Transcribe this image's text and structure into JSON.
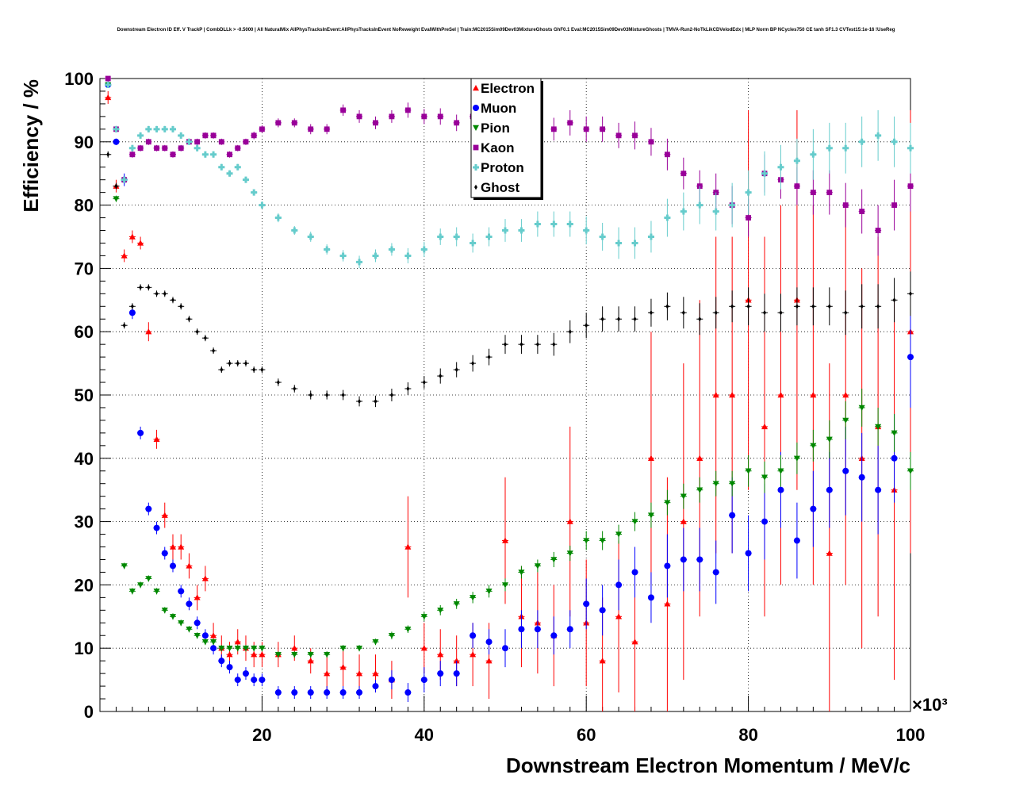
{
  "chart_data": {
    "type": "scatter",
    "title": "Downstream Electron ID Eff. V TrackP | CombDLLk > -0.5000 | All NaturalMix AllPhysTracksInEvent:AllPhysTracksInEvent NoReweight EvalWithPreSel | Train:MC2015Sim09Dev03MixtureGhosts GhF0.1 Eval:MC2015Sim09Dev03MixtureGhosts | TMVA-Run2-NoTkLikCDVelodEdx | MLP Norm BP NCycles750 CE tanh SF1.3 CVTest15:1e-16 !UseReg",
    "xlabel": "Downstream Electron Momentum / MeV/c",
    "ylabel": "Efficiency / %",
    "x_multiplier_label": "×10³",
    "xlim": [
      0,
      100
    ],
    "ylim": [
      0,
      100
    ],
    "x_ticks": [
      20,
      40,
      60,
      80,
      100
    ],
    "y_ticks": [
      0,
      10,
      20,
      30,
      40,
      50,
      60,
      70,
      80,
      90,
      100
    ],
    "grid": true,
    "legend_position": "top-center",
    "series": [
      {
        "name": "Electron",
        "color": "#ff0000",
        "marker": "triangle-up",
        "x": [
          1,
          2,
          3,
          4,
          5,
          6,
          7,
          8,
          9,
          10,
          11,
          12,
          13,
          14,
          15,
          16,
          17,
          18,
          19,
          20,
          22,
          24,
          26,
          28,
          30,
          32,
          34,
          36,
          38,
          40,
          42,
          44,
          46,
          48,
          50,
          52,
          54,
          56,
          58,
          60,
          62,
          64,
          66,
          68,
          70,
          72,
          74,
          76,
          78,
          80,
          82,
          84,
          86,
          88,
          90,
          92,
          94,
          96,
          98,
          100
        ],
        "y": [
          97,
          83,
          72,
          75,
          74,
          60,
          43,
          31,
          26,
          26,
          23,
          18,
          21,
          12,
          10,
          9,
          11,
          10,
          9,
          9,
          9,
          10,
          8,
          6,
          7,
          6,
          6,
          5,
          26,
          10,
          9,
          8,
          9,
          8,
          27,
          15,
          14,
          12,
          30,
          14,
          8,
          15,
          11,
          40,
          17,
          30,
          40,
          50,
          50,
          65,
          45,
          50,
          65,
          50,
          25,
          50,
          40,
          45,
          35,
          60
        ],
        "err": [
          1,
          1,
          1,
          1,
          1,
          1.5,
          1.5,
          2,
          2,
          2,
          2,
          2,
          2,
          2,
          2,
          2,
          2,
          2,
          2,
          2,
          2,
          2,
          2,
          3,
          3,
          3,
          3,
          3,
          8,
          4,
          4,
          4,
          5,
          6,
          10,
          8,
          8,
          8,
          15,
          10,
          10,
          12,
          12,
          20,
          20,
          25,
          25,
          25,
          25,
          30,
          30,
          30,
          30,
          30,
          30,
          30,
          30,
          30,
          30,
          35
        ]
      },
      {
        "name": "Muon",
        "color": "#0000ff",
        "marker": "circle",
        "x": [
          1,
          2,
          3,
          4,
          5,
          6,
          7,
          8,
          9,
          10,
          11,
          12,
          13,
          14,
          15,
          16,
          17,
          18,
          19,
          20,
          22,
          24,
          26,
          28,
          30,
          32,
          34,
          36,
          38,
          40,
          42,
          44,
          46,
          48,
          50,
          52,
          54,
          56,
          58,
          60,
          62,
          64,
          66,
          68,
          70,
          72,
          74,
          76,
          78,
          80,
          82,
          84,
          86,
          88,
          90,
          92,
          94,
          96,
          98,
          100
        ],
        "y": [
          99,
          90,
          84,
          63,
          44,
          32,
          29,
          25,
          23,
          19,
          17,
          14,
          12,
          10,
          8,
          7,
          5,
          6,
          5,
          5,
          3,
          3,
          3,
          3,
          3,
          3,
          4,
          5,
          3,
          5,
          6,
          6,
          12,
          11,
          10,
          13,
          13,
          12,
          13,
          17,
          16,
          20,
          22,
          18,
          23,
          24,
          24,
          22,
          31,
          25,
          30,
          35,
          27,
          32,
          35,
          38,
          37,
          35,
          40,
          56
        ],
        "err": [
          0.5,
          0.5,
          1,
          1,
          1,
          1,
          1,
          1,
          1,
          1,
          1,
          1,
          1,
          1,
          1,
          1,
          1,
          1,
          1,
          1,
          1,
          1,
          1,
          1,
          1,
          1,
          1,
          1.5,
          1.5,
          2,
          2,
          2,
          2,
          2,
          3,
          3,
          3,
          3,
          3,
          4,
          4,
          4,
          4,
          4,
          5,
          5,
          5,
          5,
          6,
          6,
          6,
          6,
          6,
          6,
          6,
          7,
          7,
          7,
          7,
          8
        ]
      },
      {
        "name": "Pion",
        "color": "#008800",
        "marker": "triangle-down",
        "x": [
          1,
          2,
          3,
          4,
          5,
          6,
          7,
          8,
          9,
          10,
          11,
          12,
          13,
          14,
          15,
          16,
          17,
          18,
          19,
          20,
          22,
          24,
          26,
          28,
          30,
          32,
          34,
          36,
          38,
          40,
          42,
          44,
          46,
          48,
          50,
          52,
          54,
          56,
          58,
          60,
          62,
          64,
          66,
          68,
          70,
          72,
          74,
          76,
          78,
          80,
          82,
          84,
          86,
          88,
          90,
          92,
          94,
          96,
          98,
          100
        ],
        "y": [
          99,
          81,
          23,
          19,
          20,
          21,
          19,
          16,
          15,
          14,
          13,
          12,
          11,
          11,
          10,
          10,
          10,
          10,
          10,
          10,
          9,
          9,
          9,
          9,
          10,
          10,
          11,
          12,
          13,
          15,
          16,
          17,
          18,
          19,
          20,
          22,
          23,
          24,
          25,
          27,
          27,
          28,
          30,
          31,
          33,
          34,
          35,
          36,
          36,
          38,
          37,
          38,
          40,
          42,
          43,
          46,
          48,
          45,
          44,
          38
        ],
        "err": [
          0.5,
          0.5,
          0.5,
          0.5,
          0.5,
          0.5,
          0.5,
          0.5,
          0.5,
          0.5,
          0.5,
          0.5,
          0.5,
          0.5,
          0.5,
          0.5,
          0.5,
          0.5,
          0.5,
          0.5,
          0.5,
          0.5,
          0.5,
          0.5,
          0.5,
          0.5,
          0.5,
          0.6,
          0.6,
          0.7,
          0.8,
          0.8,
          0.9,
          1,
          1,
          1,
          1,
          1.2,
          1.2,
          1.5,
          1.5,
          1.5,
          1.5,
          2,
          2,
          2,
          2,
          2,
          2,
          2.5,
          2.5,
          2.5,
          2.5,
          2.5,
          3,
          3,
          3,
          3,
          3,
          3
        ]
      },
      {
        "name": "Kaon",
        "color": "#990099",
        "marker": "square",
        "x": [
          1,
          2,
          3,
          4,
          5,
          6,
          7,
          8,
          9,
          10,
          11,
          12,
          13,
          14,
          15,
          16,
          17,
          18,
          19,
          20,
          22,
          24,
          26,
          28,
          30,
          32,
          34,
          36,
          38,
          40,
          42,
          44,
          46,
          48,
          50,
          52,
          54,
          56,
          58,
          60,
          62,
          64,
          66,
          68,
          70,
          72,
          74,
          76,
          78,
          80,
          82,
          84,
          86,
          88,
          90,
          92,
          94,
          96,
          98,
          100
        ],
        "y": [
          100,
          92,
          84,
          88,
          89,
          90,
          89,
          89,
          88,
          89,
          90,
          90,
          91,
          91,
          90,
          88,
          89,
          90,
          91,
          92,
          93,
          93,
          92,
          92,
          95,
          94,
          93,
          94,
          95,
          94,
          94,
          93,
          94,
          95,
          94,
          94,
          93,
          92,
          93,
          92,
          92,
          91,
          91,
          90,
          88,
          85,
          83,
          82,
          80,
          78,
          85,
          84,
          83,
          82,
          82,
          80,
          79,
          76,
          80,
          83
        ],
        "err": [
          0.5,
          0.5,
          0.5,
          0.5,
          0.5,
          0.5,
          0.5,
          0.5,
          0.5,
          0.5,
          0.5,
          0.5,
          0.5,
          0.5,
          0.5,
          0.5,
          0.5,
          0.5,
          0.6,
          0.6,
          0.7,
          0.7,
          0.8,
          0.8,
          0.9,
          1,
          1,
          1,
          1.2,
          1.2,
          1.3,
          1.3,
          1.5,
          1.5,
          1.5,
          1.5,
          1.8,
          1.8,
          2,
          2,
          2,
          2,
          2.2,
          2.2,
          2.5,
          2.5,
          2.5,
          3,
          3,
          3,
          3,
          3,
          3,
          3.5,
          3.5,
          3.5,
          3.5,
          4,
          4,
          4
        ]
      },
      {
        "name": "Proton",
        "color": "#66cccc",
        "marker": "cross",
        "x": [
          1,
          2,
          3,
          4,
          5,
          6,
          7,
          8,
          9,
          10,
          11,
          12,
          13,
          14,
          15,
          16,
          17,
          18,
          19,
          20,
          22,
          24,
          26,
          28,
          30,
          32,
          34,
          36,
          38,
          40,
          42,
          44,
          46,
          48,
          50,
          52,
          54,
          56,
          58,
          60,
          62,
          64,
          66,
          68,
          70,
          72,
          74,
          76,
          78,
          80,
          82,
          84,
          86,
          88,
          90,
          92,
          94,
          96,
          98,
          100
        ],
        "y": [
          99,
          92,
          84,
          89,
          91,
          92,
          92,
          92,
          92,
          91,
          90,
          89,
          88,
          88,
          86,
          85,
          86,
          84,
          82,
          80,
          78,
          76,
          75,
          73,
          72,
          71,
          72,
          73,
          72,
          73,
          75,
          75,
          74,
          75,
          76,
          76,
          77,
          77,
          77,
          76,
          75,
          74,
          74,
          75,
          78,
          79,
          80,
          79,
          80,
          82,
          85,
          86,
          87,
          88,
          89,
          89,
          90,
          91,
          90,
          89
        ],
        "err": [
          0.5,
          0.5,
          0.5,
          0.5,
          0.5,
          0.5,
          0.5,
          0.5,
          0.5,
          0.5,
          0.5,
          0.5,
          0.5,
          0.5,
          0.5,
          0.5,
          0.5,
          0.5,
          0.5,
          0.6,
          0.7,
          0.7,
          0.8,
          0.8,
          0.9,
          1,
          1,
          1,
          1.2,
          1.2,
          1.3,
          1.5,
          1.5,
          1.5,
          1.8,
          1.8,
          2,
          2,
          2,
          2.2,
          2.2,
          2.5,
          2.5,
          2.5,
          3,
          3,
          3,
          3,
          3.5,
          3.5,
          3.5,
          3.5,
          3.5,
          4,
          4,
          4,
          4,
          4,
          4,
          4
        ]
      },
      {
        "name": "Ghost",
        "color": "#000000",
        "marker": "diamond",
        "x": [
          1,
          2,
          3,
          4,
          5,
          6,
          7,
          8,
          9,
          10,
          11,
          12,
          13,
          14,
          15,
          16,
          17,
          18,
          19,
          20,
          22,
          24,
          26,
          28,
          30,
          32,
          34,
          36,
          38,
          40,
          42,
          44,
          46,
          48,
          50,
          52,
          54,
          56,
          58,
          60,
          62,
          64,
          66,
          68,
          70,
          72,
          74,
          76,
          78,
          80,
          82,
          84,
          86,
          88,
          90,
          92,
          94,
          96,
          98,
          100
        ],
        "y": [
          88,
          83,
          61,
          64,
          67,
          67,
          66,
          66,
          65,
          64,
          62,
          60,
          59,
          57,
          54,
          55,
          55,
          55,
          54,
          54,
          52,
          51,
          50,
          50,
          50,
          49,
          49,
          50,
          51,
          52,
          53,
          54,
          55,
          56,
          58,
          58,
          58,
          58,
          60,
          61,
          62,
          62,
          62,
          63,
          64,
          63,
          62,
          63,
          64,
          64,
          63,
          63,
          64,
          64,
          64,
          63,
          64,
          64,
          65,
          66
        ],
        "err": [
          0.5,
          0.5,
          0.5,
          0.5,
          0.5,
          0.5,
          0.5,
          0.5,
          0.5,
          0.5,
          0.5,
          0.5,
          0.5,
          0.5,
          0.5,
          0.5,
          0.5,
          0.5,
          0.5,
          0.5,
          0.6,
          0.6,
          0.7,
          0.7,
          0.8,
          0.8,
          0.9,
          1,
          1,
          1,
          1.2,
          1.2,
          1.3,
          1.3,
          1.5,
          1.5,
          1.5,
          1.8,
          1.8,
          2,
          2,
          2,
          2,
          2.2,
          2.2,
          2.5,
          2.5,
          2.5,
          2.5,
          3,
          3,
          3,
          3,
          3,
          3,
          3.5,
          3.5,
          3.5,
          3.5,
          3.5
        ]
      }
    ]
  }
}
